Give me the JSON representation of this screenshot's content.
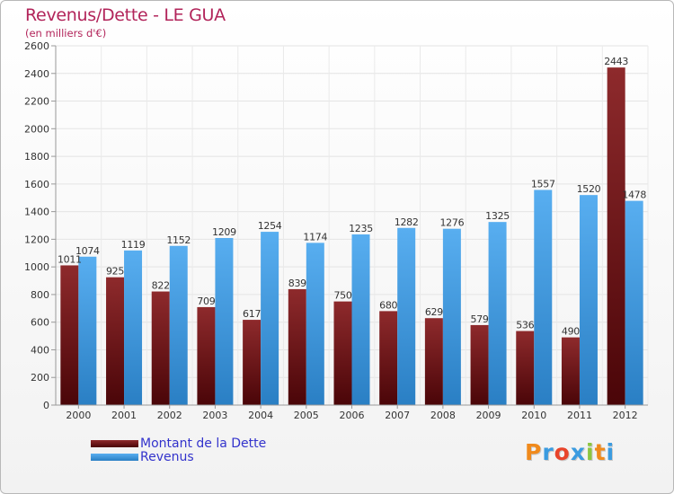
{
  "header": {
    "title": "Revenus/Dette - LE GUA",
    "subtitle": "(en milliers d'€)"
  },
  "logo": {
    "text": "Proxiti",
    "letters": [
      "P",
      "r",
      "o",
      "x",
      "i",
      "t",
      "i"
    ],
    "colors": [
      "#f08a1c",
      "#3a9be0",
      "#e8442a",
      "#3a9be0",
      "#8cc63f",
      "#f08a1c",
      "#3a9be0"
    ]
  },
  "colors": {
    "debt": "#6b0f14",
    "revenue": "#4a9fe0",
    "title": "#b2245a",
    "legend_text": "#3333cc"
  },
  "chart_data": {
    "type": "bar",
    "title": "Revenus/Dette - LE GUA",
    "subtitle": "(en milliers d'€)",
    "categories": [
      "2000",
      "2001",
      "2002",
      "2003",
      "2004",
      "2005",
      "2006",
      "2007",
      "2008",
      "2009",
      "2010",
      "2011",
      "2012"
    ],
    "series": [
      {
        "name": "Montant de la Dette",
        "values": [
          1011,
          925,
          822,
          709,
          617,
          839,
          750,
          680,
          629,
          579,
          536,
          490,
          2443
        ],
        "labels": [
          "1011",
          "925",
          "822",
          "709",
          "617",
          "839",
          "750",
          "680",
          "629",
          "579",
          "536",
          "490",
          "2443"
        ]
      },
      {
        "name": "Revenus",
        "values": [
          1074,
          1119,
          1152,
          1209,
          1254,
          1174,
          1235,
          1282,
          1276,
          1325,
          1557,
          1520,
          1478
        ],
        "labels": [
          "1074",
          "1119",
          "1152",
          "1209",
          "1254",
          "1174",
          "1235",
          "1282",
          "1276",
          "1325",
          "1557",
          "1520",
          "1478"
        ]
      }
    ],
    "ylim": [
      0,
      2600
    ],
    "yticks": [
      0,
      200,
      400,
      600,
      800,
      1000,
      1200,
      1400,
      1600,
      1800,
      2000,
      2200,
      2400,
      2600
    ],
    "grid": true,
    "legend": "bottom-left"
  }
}
